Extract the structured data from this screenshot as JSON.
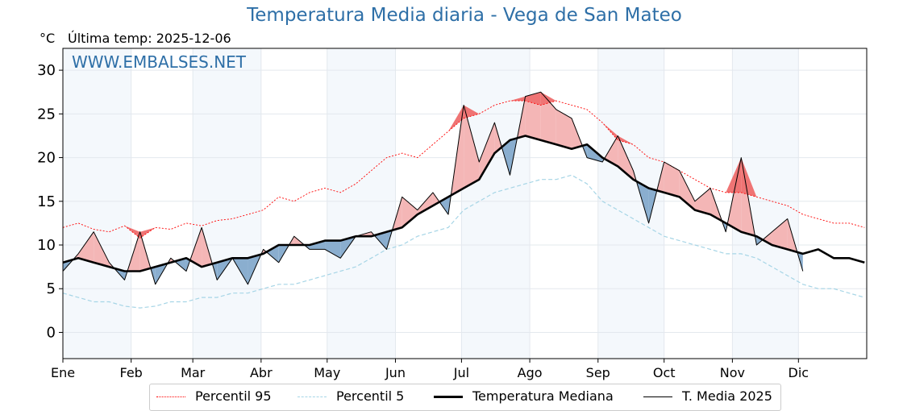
{
  "chart_data": {
    "type": "line",
    "title": "Temperatura Media diaria - Vega de San Mateo",
    "ylabel": "°C",
    "subtitle": "Última temp: 2025-12-06",
    "watermark": "WWW.EMBALSES.NET",
    "ylim": [
      -3,
      32.5
    ],
    "yticks": [
      0,
      5,
      10,
      15,
      20,
      25,
      30
    ],
    "xlim_days": [
      0,
      365
    ],
    "xticks": [
      {
        "day": 0,
        "label": "Ene"
      },
      {
        "day": 31,
        "label": "Feb"
      },
      {
        "day": 59,
        "label": "Mar"
      },
      {
        "day": 90,
        "label": "Abr"
      },
      {
        "day": 120,
        "label": "May"
      },
      {
        "day": 151,
        "label": "Jun"
      },
      {
        "day": 181,
        "label": "Jul"
      },
      {
        "day": 212,
        "label": "Ago"
      },
      {
        "day": 243,
        "label": "Sep"
      },
      {
        "day": 273,
        "label": "Oct"
      },
      {
        "day": 304,
        "label": "Nov"
      },
      {
        "day": 334,
        "label": "Dic"
      }
    ],
    "grid": true,
    "legend_position": "bottom-center",
    "colors": {
      "p95": "#ff0000",
      "p5": "#a6d5e6",
      "median": "#000000",
      "media2025": "#000000",
      "above": "#f4b6b6",
      "above_p95": "#ef7474",
      "below": "#8aaecf",
      "below_p5": "#2b6aa0",
      "title": "#2e6fa7",
      "month_band": "#f4f8fc"
    },
    "x_days": [
      0,
      7,
      14,
      21,
      28,
      35,
      42,
      49,
      56,
      63,
      70,
      77,
      84,
      91,
      98,
      105,
      112,
      119,
      126,
      133,
      140,
      147,
      154,
      161,
      168,
      175,
      182,
      189,
      196,
      203,
      210,
      217,
      224,
      231,
      238,
      245,
      252,
      259,
      266,
      273,
      280,
      287,
      294,
      301,
      308,
      315,
      322,
      329,
      336,
      343,
      350,
      357,
      364
    ],
    "series": [
      {
        "name": "Percentil 95",
        "style": "dotted-red",
        "values": [
          12.0,
          12.5,
          11.8,
          11.5,
          12.2,
          10.8,
          12.0,
          11.8,
          12.5,
          12.2,
          12.8,
          13.0,
          13.5,
          14.0,
          15.5,
          15.0,
          16.0,
          16.5,
          16.0,
          17.0,
          18.5,
          20.0,
          20.5,
          20.0,
          21.5,
          23.0,
          24.5,
          25.0,
          26.0,
          26.5,
          26.5,
          26.0,
          26.5,
          26.0,
          25.5,
          24.0,
          22.0,
          21.5,
          20.0,
          19.5,
          18.5,
          17.5,
          16.5,
          16.0,
          16.0,
          15.5,
          15.0,
          14.5,
          13.5,
          13.0,
          12.5,
          12.5,
          12.0
        ]
      },
      {
        "name": "Percentil 5",
        "style": "dashed-lightblue",
        "values": [
          4.5,
          4.0,
          3.5,
          3.5,
          3.0,
          2.8,
          3.0,
          3.5,
          3.5,
          4.0,
          4.0,
          4.5,
          4.5,
          5.0,
          5.5,
          5.5,
          6.0,
          6.5,
          7.0,
          7.5,
          8.5,
          9.5,
          10.0,
          11.0,
          11.5,
          12.0,
          14.0,
          15.0,
          16.0,
          16.5,
          17.0,
          17.5,
          17.5,
          18.0,
          17.0,
          15.0,
          14.0,
          13.0,
          12.0,
          11.0,
          10.5,
          10.0,
          9.5,
          9.0,
          9.0,
          8.5,
          7.5,
          6.5,
          5.5,
          5.0,
          5.0,
          4.5,
          4.0
        ]
      },
      {
        "name": "Temperatura Mediana",
        "style": "thick-black",
        "values": [
          8.0,
          8.5,
          8.0,
          7.5,
          7.0,
          7.0,
          7.5,
          8.0,
          8.5,
          7.5,
          8.0,
          8.5,
          8.5,
          9.0,
          10.0,
          10.0,
          10.0,
          10.5,
          10.5,
          11.0,
          11.0,
          11.5,
          12.0,
          13.5,
          14.5,
          15.5,
          16.5,
          17.5,
          20.5,
          22.0,
          22.5,
          22.0,
          21.5,
          21.0,
          21.5,
          20.0,
          19.0,
          17.5,
          16.5,
          16.0,
          15.5,
          14.0,
          13.5,
          12.5,
          11.5,
          11.0,
          10.0,
          9.5,
          9.0,
          9.5,
          8.5,
          8.5,
          8.0
        ]
      },
      {
        "name": "T. Media 2025",
        "style": "thin-black",
        "values": [
          7.0,
          9.0,
          11.5,
          8.0,
          6.0,
          11.5,
          5.5,
          8.5,
          7.0,
          12.0,
          6.0,
          8.5,
          5.5,
          9.5,
          8.0,
          11.0,
          9.5,
          9.5,
          8.5,
          11.0,
          11.5,
          9.5,
          15.5,
          14.0,
          16.0,
          13.5,
          26.0,
          19.5,
          24.0,
          18.0,
          27.0,
          27.5,
          25.5,
          24.5,
          20.0,
          19.5,
          22.5,
          18.5,
          12.5,
          19.5,
          18.5,
          15.0,
          16.5,
          11.5,
          20.0,
          10.0,
          11.5,
          13.0,
          7.0,
          null,
          null,
          null,
          null
        ]
      }
    ]
  },
  "legend": {
    "items": [
      "Percentil 95",
      "Percentil 5",
      "Temperatura Mediana",
      "T. Media 2025"
    ]
  }
}
